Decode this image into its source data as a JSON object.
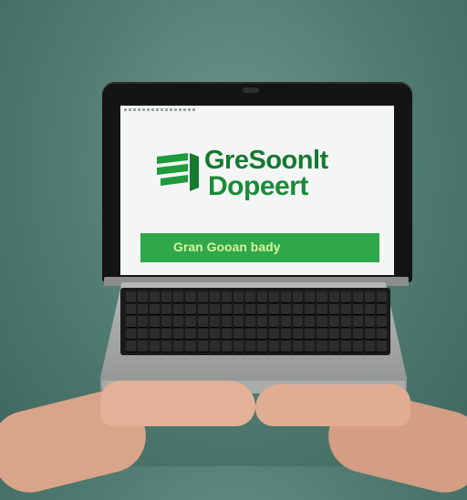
{
  "screen": {
    "title_line1": "GreSoonlt",
    "title_line2": "Dopeert",
    "band_text": "Gran Gooan bady"
  },
  "colors": {
    "background": "#5b8479",
    "screen_green": "#2fa84a",
    "title_green": "#137a2f"
  }
}
